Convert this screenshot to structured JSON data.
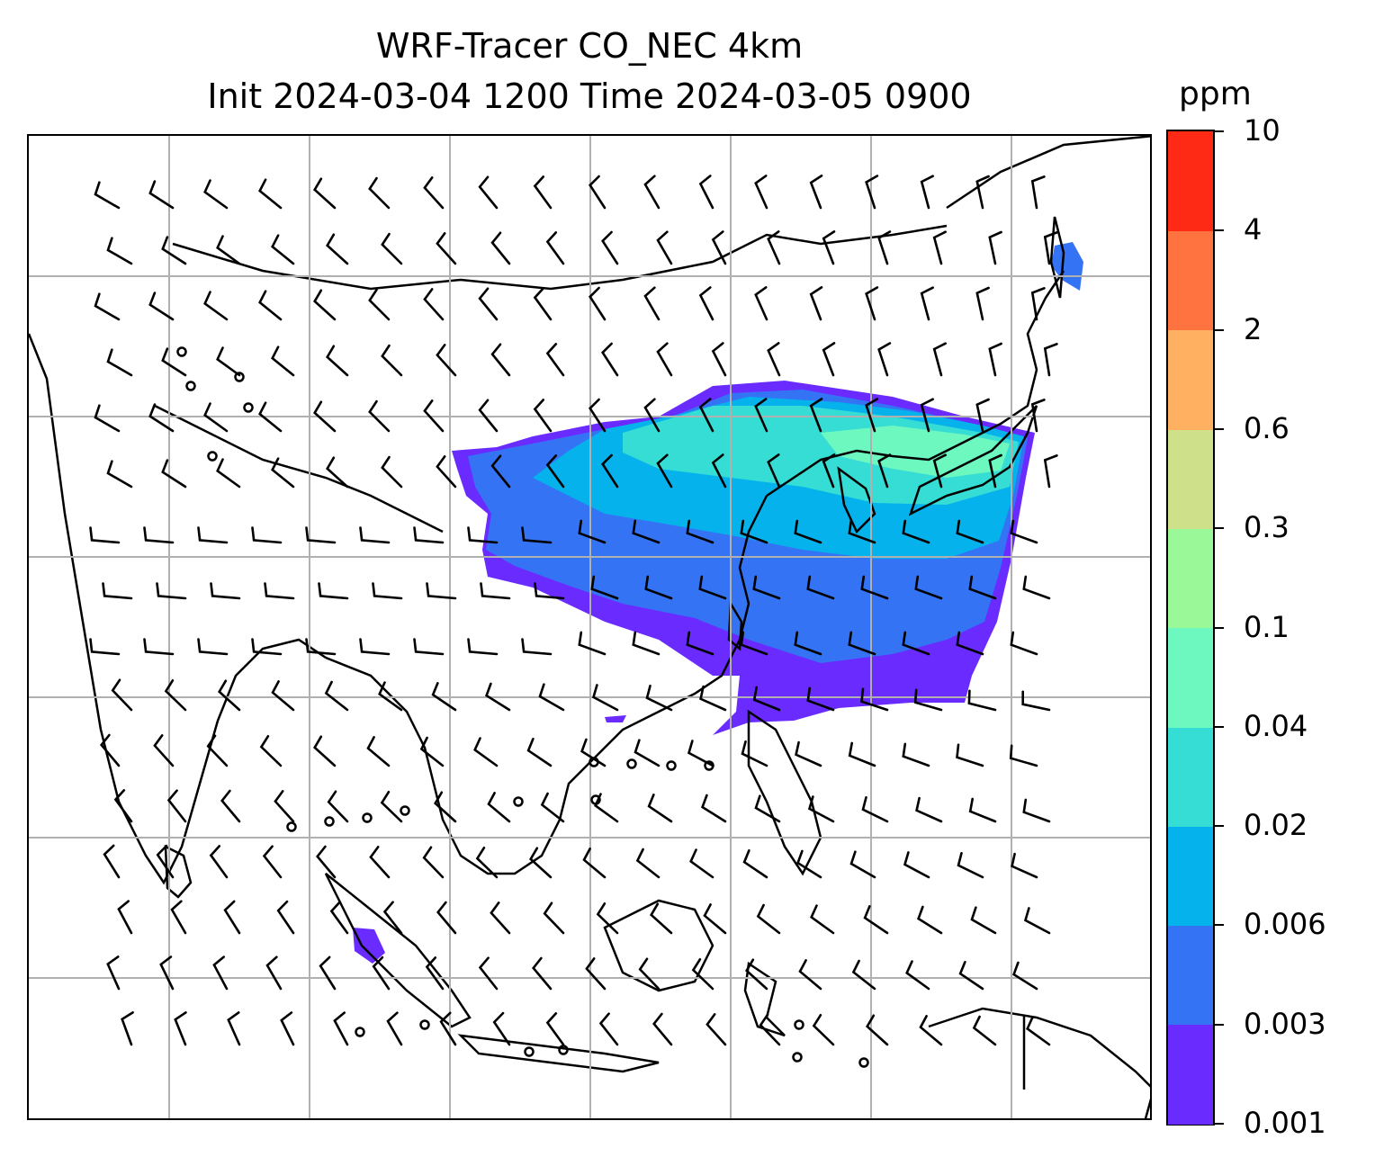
{
  "title": {
    "line1": "WRF-Tracer CO_NEC 4km",
    "line2": "Init 2024-03-04 1200 Time 2024-03-05 0900"
  },
  "colorbar": {
    "unit": "ppm",
    "levels": [
      "0.001",
      "0.003",
      "0.006",
      "0.02",
      "0.04",
      "0.1",
      "0.3",
      "0.6",
      "2",
      "4",
      "10"
    ],
    "colors": [
      "#6a2bff",
      "#3474f4",
      "#05b2ec",
      "#36ddd4",
      "#6cf8bf",
      "#9bf898",
      "#cfe08a",
      "#ffb060",
      "#ff7340",
      "#ff2a16"
    ]
  },
  "map": {
    "gridlines": true,
    "wind_barbs": true,
    "plume_colors_present": [
      "#6a2bff",
      "#3474f4",
      "#05b2ec",
      "#36ddd4",
      "#6cf8bf"
    ]
  }
}
